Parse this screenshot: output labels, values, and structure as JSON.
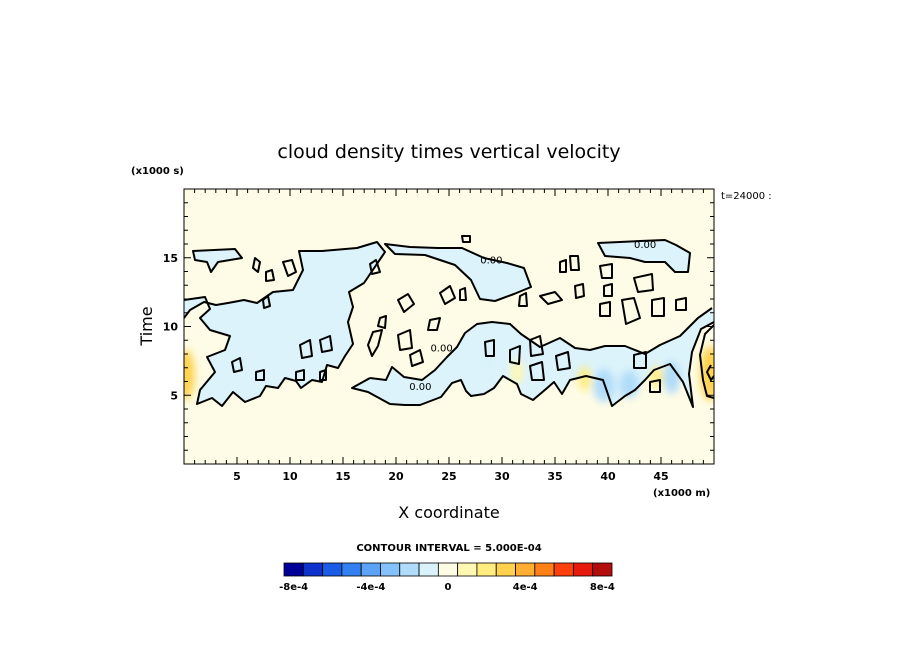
{
  "chart_data": {
    "type": "heatmap",
    "title": "cloud density times vertical velocity",
    "xlabel": "X coordinate",
    "ylabel": "Time",
    "x_scale_label": "(x1000 m)",
    "y_scale_label": "(x1000 s)",
    "time_annotation": "t=24000 :",
    "xlim": [
      0,
      50
    ],
    "ylim": [
      0,
      20
    ],
    "x_ticks": [
      5,
      10,
      15,
      20,
      25,
      30,
      35,
      40,
      45
    ],
    "y_ticks": [
      5,
      10,
      15
    ],
    "contour_labels": [
      {
        "text": "0.00",
        "x": 29.0,
        "y": 14.6
      },
      {
        "text": "0.00",
        "x": 43.5,
        "y": 15.7
      },
      {
        "text": "0.00",
        "x": 24.3,
        "y": 8.2
      },
      {
        "text": "0.00",
        "x": 22.3,
        "y": 5.4
      }
    ],
    "field_blobs": [
      {
        "x": 0.2,
        "y": 6.5,
        "rx": 0.8,
        "ry": 1.8,
        "value": 0.0003
      },
      {
        "x": 49.6,
        "y": 6.6,
        "rx": 0.9,
        "ry": 2.0,
        "value": 0.0003
      },
      {
        "x": 39.6,
        "y": 5.7,
        "rx": 1.0,
        "ry": 1.2,
        "value": -0.0002
      },
      {
        "x": 42.0,
        "y": 5.8,
        "rx": 0.9,
        "ry": 1.0,
        "value": -0.0002
      },
      {
        "x": 46.0,
        "y": 6.3,
        "rx": 0.8,
        "ry": 1.2,
        "value": -0.0002
      },
      {
        "x": 37.8,
        "y": 6.2,
        "rx": 0.6,
        "ry": 0.9,
        "value": 0.0002
      },
      {
        "x": 44.6,
        "y": 6.3,
        "rx": 0.6,
        "ry": 0.8,
        "value": 0.0002
      },
      {
        "x": 31.4,
        "y": 6.7,
        "rx": 0.6,
        "ry": 0.9,
        "value": 0.0001
      },
      {
        "x": 28.6,
        "y": 7.6,
        "rx": 0.6,
        "ry": 0.8,
        "value": -0.0001
      }
    ],
    "colorbar": {
      "title": "CONTOUR INTERVAL = 5.000E-04",
      "tick_labels": [
        "-8e-4",
        "-4e-4",
        "0",
        "4e-4",
        "8e-4"
      ],
      "colors": [
        "#000099",
        "#0d33cc",
        "#1a5ce6",
        "#3380f2",
        "#5ca3f7",
        "#85c2fa",
        "#b0dcfa",
        "#d9f2fb",
        "#fffce6",
        "#fff8b3",
        "#ffed80",
        "#ffd24d",
        "#ffad33",
        "#ff8019",
        "#ff400d",
        "#e61a0d",
        "#b30d0d"
      ]
    }
  }
}
